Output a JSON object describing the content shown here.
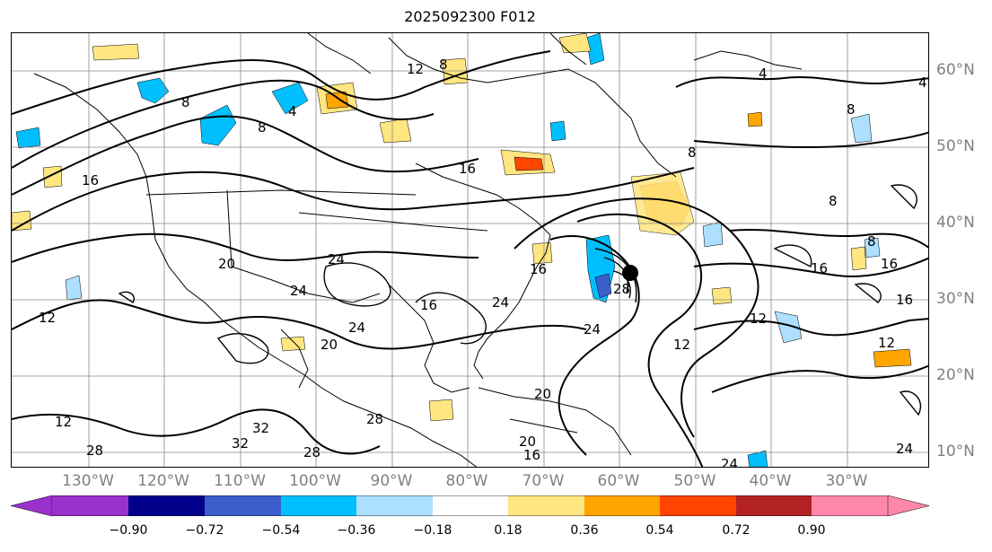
{
  "title": "2025092300 F012",
  "lon_labels": [
    "130°W",
    "120°W",
    "110°W",
    "100°W",
    "90°W",
    "80°W",
    "70°W",
    "60°W",
    "50°W",
    "40°W",
    "30°W"
  ],
  "lat_labels": [
    "60°N",
    "50°N",
    "40°N",
    "30°N",
    "20°N",
    "10°N"
  ],
  "colorbar": {
    "ticks": [
      "−0.90",
      "−0.72",
      "−0.54",
      "−0.36",
      "−0.18",
      "0.18",
      "0.36",
      "0.54",
      "0.72",
      "0.90"
    ],
    "colors": [
      "#9932CC",
      "#00008B",
      "#3A5FCD",
      "#00BFFF",
      "#ADDFFF",
      "#FFFFFF",
      "#FFE680",
      "#FFA500",
      "#FF4500",
      "#B22222",
      "#FF88AA"
    ]
  },
  "contour_labels": [
    {
      "text": "12"
    },
    {
      "text": "8"
    },
    {
      "text": "8"
    },
    {
      "text": "4"
    },
    {
      "text": "8"
    },
    {
      "text": "4"
    },
    {
      "text": "16"
    },
    {
      "text": "8"
    },
    {
      "text": "16"
    },
    {
      "text": "20"
    },
    {
      "text": "24"
    },
    {
      "text": "24"
    },
    {
      "text": "16"
    },
    {
      "text": "24"
    },
    {
      "text": "20"
    },
    {
      "text": "24"
    },
    {
      "text": "16"
    },
    {
      "text": "28"
    },
    {
      "text": "24"
    },
    {
      "text": "12"
    },
    {
      "text": "12"
    },
    {
      "text": "16"
    },
    {
      "text": "16"
    },
    {
      "text": "16"
    },
    {
      "text": "8"
    },
    {
      "text": "8"
    },
    {
      "text": "8"
    },
    {
      "text": "4"
    },
    {
      "text": "12"
    },
    {
      "text": "20"
    },
    {
      "text": "28"
    },
    {
      "text": "32"
    },
    {
      "text": "32"
    },
    {
      "text": "28"
    },
    {
      "text": "12"
    },
    {
      "text": "28"
    },
    {
      "text": "24"
    },
    {
      "text": "24"
    },
    {
      "text": "12"
    },
    {
      "text": "20"
    },
    {
      "text": "16"
    }
  ],
  "storm_marker": {
    "lon": -60.5,
    "lat": 33.5
  }
}
